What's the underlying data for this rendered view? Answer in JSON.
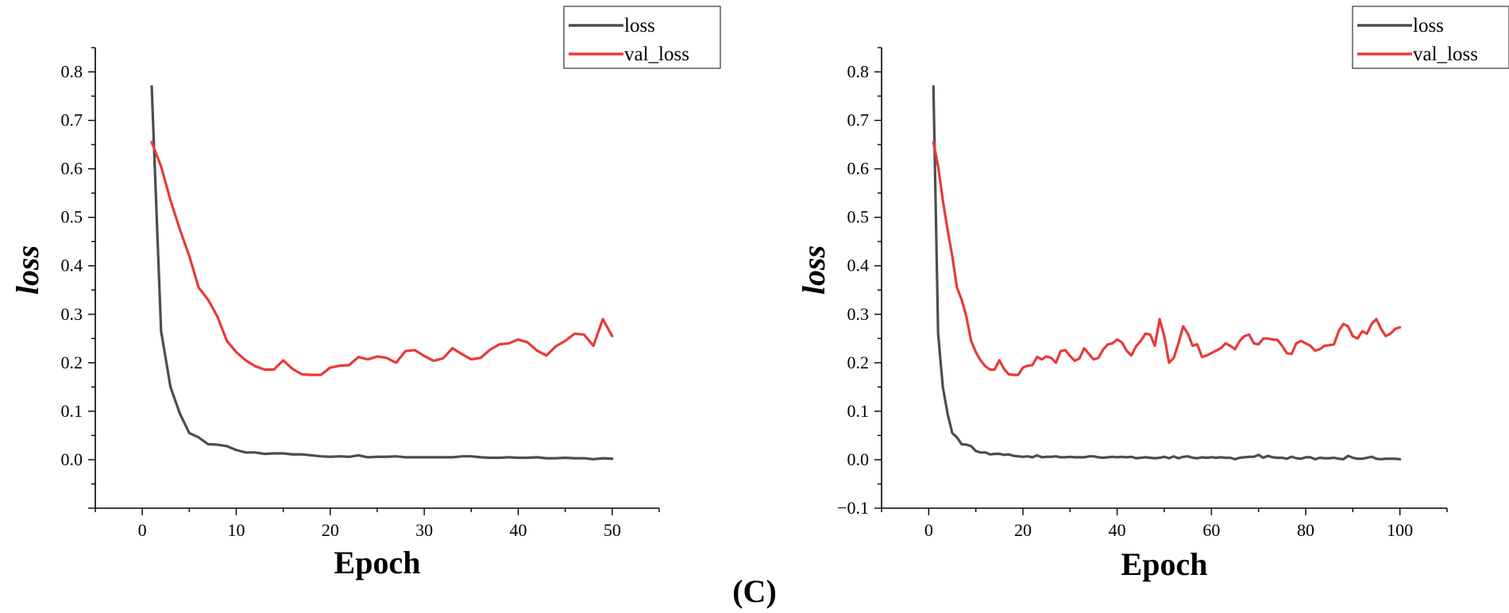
{
  "figure_caption": "(C)",
  "colors": {
    "loss": "#4d4d4d",
    "val_loss": "#e83a3a",
    "axis": "#000000"
  },
  "chart_data": [
    {
      "type": "line",
      "title": "",
      "xlabel": "Epoch",
      "ylabel": "loss",
      "xlim": [
        -5,
        55
      ],
      "ylim": [
        -0.1,
        0.85
      ],
      "xticks": [
        0,
        10,
        20,
        30,
        40,
        50
      ],
      "yticks": [
        0.0,
        0.1,
        0.2,
        0.3,
        0.4,
        0.5,
        0.6,
        0.7,
        0.8
      ],
      "ytick_labels": [
        "0.0",
        "0.1",
        "0.2",
        "0.3",
        "0.4",
        "0.5",
        "0.6",
        "0.7",
        "0.8"
      ],
      "grid": false,
      "legend": "top-right",
      "series": [
        {
          "name": "loss",
          "color": "#4d4d4d",
          "x": [
            1,
            2,
            3,
            4,
            5,
            6,
            7,
            8,
            9,
            10,
            11,
            12,
            13,
            14,
            15,
            16,
            17,
            18,
            19,
            20,
            21,
            22,
            23,
            24,
            25,
            26,
            27,
            28,
            29,
            30,
            31,
            32,
            33,
            34,
            35,
            36,
            37,
            38,
            39,
            40,
            41,
            42,
            43,
            44,
            45,
            46,
            47,
            48,
            49,
            50
          ],
          "values": [
            0.77,
            0.265,
            0.15,
            0.095,
            0.055,
            0.046,
            0.032,
            0.031,
            0.028,
            0.02,
            0.015,
            0.015,
            0.012,
            0.013,
            0.013,
            0.011,
            0.011,
            0.009,
            0.007,
            0.006,
            0.007,
            0.006,
            0.009,
            0.005,
            0.006,
            0.006,
            0.007,
            0.005,
            0.005,
            0.005,
            0.005,
            0.005,
            0.005,
            0.007,
            0.007,
            0.005,
            0.004,
            0.004,
            0.005,
            0.004,
            0.004,
            0.005,
            0.003,
            0.003,
            0.004,
            0.003,
            0.003,
            0.001,
            0.003,
            0.002
          ]
        },
        {
          "name": "val_loss",
          "color": "#e83a3a",
          "x": [
            1,
            2,
            3,
            4,
            5,
            6,
            7,
            8,
            9,
            10,
            11,
            12,
            13,
            14,
            15,
            16,
            17,
            18,
            19,
            20,
            21,
            22,
            23,
            24,
            25,
            26,
            27,
            28,
            29,
            30,
            31,
            32,
            33,
            34,
            35,
            36,
            37,
            38,
            39,
            40,
            41,
            42,
            43,
            44,
            45,
            46,
            47,
            48,
            49,
            50
          ],
          "values": [
            0.655,
            0.605,
            0.535,
            0.475,
            0.42,
            0.355,
            0.33,
            0.295,
            0.245,
            0.222,
            0.205,
            0.193,
            0.186,
            0.186,
            0.205,
            0.187,
            0.176,
            0.175,
            0.175,
            0.19,
            0.194,
            0.195,
            0.212,
            0.207,
            0.213,
            0.21,
            0.2,
            0.224,
            0.226,
            0.214,
            0.204,
            0.209,
            0.23,
            0.218,
            0.207,
            0.21,
            0.227,
            0.238,
            0.24,
            0.248,
            0.242,
            0.225,
            0.215,
            0.234,
            0.245,
            0.26,
            0.258,
            0.235,
            0.29,
            0.255
          ]
        }
      ]
    },
    {
      "type": "line",
      "title": "",
      "xlabel": "Epoch",
      "ylabel": "loss",
      "xlim": [
        -10,
        110
      ],
      "ylim": [
        -0.1,
        0.85
      ],
      "xticks": [
        0,
        20,
        40,
        60,
        80,
        100
      ],
      "yticks": [
        -0.1,
        0.0,
        0.1,
        0.2,
        0.3,
        0.4,
        0.5,
        0.6,
        0.7,
        0.8
      ],
      "ytick_labels": [
        "−0.1",
        "0.0",
        "0.1",
        "0.2",
        "0.3",
        "0.4",
        "0.5",
        "0.6",
        "0.7",
        "0.8"
      ],
      "grid": false,
      "legend": "top-right",
      "series": [
        {
          "name": "loss",
          "color": "#4d4d4d",
          "x": [
            1,
            2,
            3,
            4,
            5,
            6,
            7,
            8,
            9,
            10,
            11,
            12,
            13,
            14,
            15,
            16,
            17,
            18,
            19,
            20,
            21,
            22,
            23,
            24,
            25,
            26,
            27,
            28,
            29,
            30,
            31,
            32,
            33,
            34,
            35,
            36,
            37,
            38,
            39,
            40,
            41,
            42,
            43,
            44,
            45,
            46,
            47,
            48,
            49,
            50,
            51,
            52,
            53,
            54,
            55,
            56,
            57,
            58,
            59,
            60,
            61,
            62,
            63,
            64,
            65,
            66,
            67,
            68,
            69,
            70,
            71,
            72,
            73,
            74,
            75,
            76,
            77,
            78,
            79,
            80,
            81,
            82,
            83,
            84,
            85,
            86,
            87,
            88,
            89,
            90,
            91,
            92,
            93,
            94,
            95,
            96,
            97,
            98,
            99,
            100
          ],
          "values": [
            0.77,
            0.26,
            0.15,
            0.095,
            0.055,
            0.046,
            0.032,
            0.031,
            0.028,
            0.018,
            0.015,
            0.015,
            0.011,
            0.012,
            0.012,
            0.01,
            0.011,
            0.008,
            0.007,
            0.006,
            0.007,
            0.005,
            0.009,
            0.005,
            0.006,
            0.006,
            0.007,
            0.005,
            0.005,
            0.006,
            0.005,
            0.005,
            0.005,
            0.007,
            0.007,
            0.005,
            0.004,
            0.005,
            0.006,
            0.005,
            0.006,
            0.005,
            0.006,
            0.003,
            0.004,
            0.005,
            0.004,
            0.003,
            0.004,
            0.006,
            0.003,
            0.007,
            0.003,
            0.006,
            0.007,
            0.004,
            0.003,
            0.005,
            0.004,
            0.005,
            0.004,
            0.005,
            0.004,
            0.004,
            0.001,
            0.004,
            0.005,
            0.006,
            0.006,
            0.01,
            0.004,
            0.008,
            0.005,
            0.004,
            0.004,
            0.002,
            0.006,
            0.003,
            0.002,
            0.005,
            0.005,
            0.001,
            0.004,
            0.003,
            0.003,
            0.004,
            0.002,
            0.001,
            0.008,
            0.004,
            0.002,
            0.002,
            0.004,
            0.006,
            0.002,
            0.001,
            0.002,
            0.002,
            0.002,
            0.001
          ]
        },
        {
          "name": "val_loss",
          "color": "#e83a3a",
          "x": [
            1,
            2,
            3,
            4,
            5,
            6,
            7,
            8,
            9,
            10,
            11,
            12,
            13,
            14,
            15,
            16,
            17,
            18,
            19,
            20,
            21,
            22,
            23,
            24,
            25,
            26,
            27,
            28,
            29,
            30,
            31,
            32,
            33,
            34,
            35,
            36,
            37,
            38,
            39,
            40,
            41,
            42,
            43,
            44,
            45,
            46,
            47,
            48,
            49,
            50,
            51,
            52,
            53,
            54,
            55,
            56,
            57,
            58,
            59,
            60,
            61,
            62,
            63,
            64,
            65,
            66,
            67,
            68,
            69,
            70,
            71,
            72,
            73,
            74,
            75,
            76,
            77,
            78,
            79,
            80,
            81,
            82,
            83,
            84,
            85,
            86,
            87,
            88,
            89,
            90,
            91,
            92,
            93,
            94,
            95,
            96,
            97,
            98,
            99,
            100
          ],
          "values": [
            0.655,
            0.605,
            0.535,
            0.475,
            0.42,
            0.355,
            0.33,
            0.295,
            0.245,
            0.222,
            0.205,
            0.193,
            0.186,
            0.186,
            0.205,
            0.187,
            0.176,
            0.175,
            0.175,
            0.19,
            0.194,
            0.195,
            0.212,
            0.207,
            0.213,
            0.21,
            0.2,
            0.224,
            0.226,
            0.214,
            0.204,
            0.209,
            0.23,
            0.218,
            0.207,
            0.21,
            0.227,
            0.238,
            0.24,
            0.248,
            0.242,
            0.225,
            0.215,
            0.234,
            0.245,
            0.26,
            0.258,
            0.235,
            0.29,
            0.255,
            0.2,
            0.21,
            0.24,
            0.275,
            0.26,
            0.235,
            0.238,
            0.212,
            0.215,
            0.22,
            0.225,
            0.23,
            0.24,
            0.235,
            0.228,
            0.245,
            0.255,
            0.258,
            0.24,
            0.238,
            0.25,
            0.25,
            0.248,
            0.247,
            0.235,
            0.22,
            0.218,
            0.24,
            0.245,
            0.24,
            0.235,
            0.225,
            0.228,
            0.235,
            0.236,
            0.238,
            0.265,
            0.28,
            0.275,
            0.255,
            0.25,
            0.265,
            0.26,
            0.28,
            0.29,
            0.27,
            0.255,
            0.26,
            0.27,
            0.273
          ]
        }
      ]
    }
  ]
}
